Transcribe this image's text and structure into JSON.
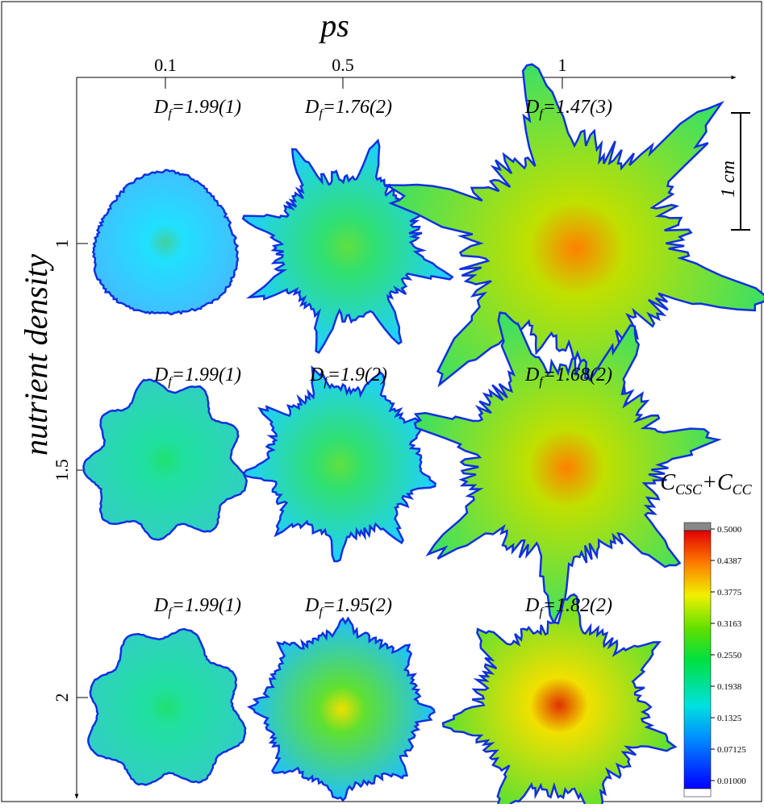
{
  "x_axis": {
    "title": "ps",
    "ticks": [
      "0.1",
      "0.5",
      "1"
    ]
  },
  "y_axis": {
    "title": "nutrient density",
    "ticks": [
      "1",
      "1.5",
      "2"
    ]
  },
  "fractal_dimensions": [
    [
      {
        "symbol": "D",
        "subscript": "f",
        "text": "=1.99(1)"
      },
      {
        "symbol": "D",
        "subscript": "f",
        "text": "=1.76(2)"
      },
      {
        "symbol": "D",
        "subscript": "f",
        "text": "=1.47(3)"
      }
    ],
    [
      {
        "symbol": "D",
        "subscript": "f",
        "text": "=1.99(1)"
      },
      {
        "symbol": "D",
        "subscript": "f",
        "text": "=1.9(2)"
      },
      {
        "symbol": "D",
        "subscript": "f",
        "text": "=1.68(2)"
      }
    ],
    [
      {
        "symbol": "D",
        "subscript": "f",
        "text": "=1.99(1)"
      },
      {
        "symbol": "D",
        "subscript": "f",
        "text": "=1.95(2)"
      },
      {
        "symbol": "D",
        "subscript": "f",
        "text": "=1.82(2)"
      }
    ]
  ],
  "scale_bar": {
    "label": "1 cm"
  },
  "colorbar": {
    "title": [
      {
        "symbol": "C",
        "subscript": "CSC"
      },
      {
        "symbol": "+C",
        "subscript": "CC"
      }
    ],
    "ticks": [
      "0.5000",
      "0.4387",
      "0.3775",
      "0.3163",
      "0.2550",
      "0.1938",
      "0.1325",
      "0.07125",
      "0.01000"
    ]
  }
}
